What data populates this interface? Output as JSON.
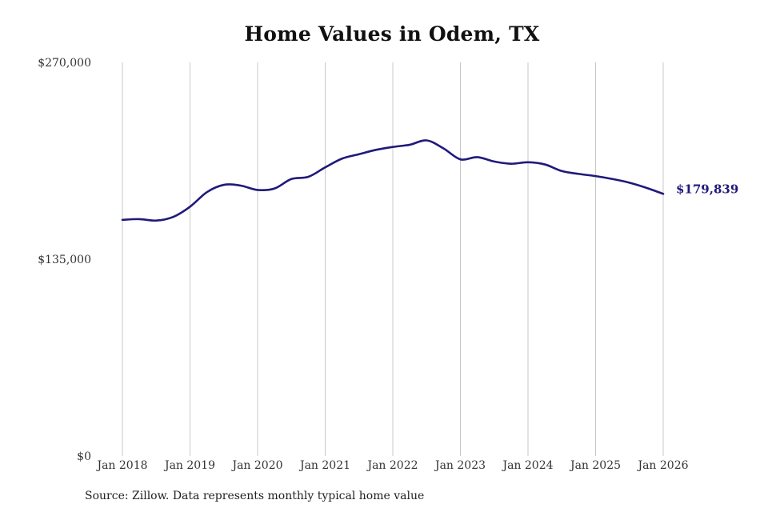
{
  "title": "Home Values in Odem, TX",
  "source_note": "Source: Zillow. Data represents monthly typical home value",
  "colors": {
    "line": "#1f1a7a",
    "grid": "#c8c8c8",
    "text": "#333333",
    "end_label": "#1f1a7a"
  },
  "chart_data": {
    "type": "line",
    "title": "Home Values in Odem, TX",
    "xlabel": "",
    "ylabel": "",
    "ylim": [
      0,
      270000
    ],
    "yticks": [
      0,
      135000,
      270000
    ],
    "ytick_labels": [
      "$0",
      "$135,000",
      "$270,000"
    ],
    "x_range": [
      "2018-01",
      "2026-01"
    ],
    "xticks": [
      "2018-01",
      "2019-01",
      "2020-01",
      "2021-01",
      "2022-01",
      "2023-01",
      "2024-01",
      "2025-01",
      "2026-01"
    ],
    "xtick_labels": [
      "Jan 2018",
      "Jan 2019",
      "Jan 2020",
      "Jan 2021",
      "Jan 2022",
      "Jan 2023",
      "Jan 2024",
      "Jan 2025",
      "Jan 2026"
    ],
    "grid": "vertical",
    "end_label": "$179,839",
    "series": [
      {
        "x": [
          "2018-01",
          "2018-04",
          "2018-07",
          "2018-10",
          "2019-01",
          "2019-04",
          "2019-07",
          "2019-10",
          "2020-01",
          "2020-04",
          "2020-07",
          "2020-10",
          "2021-01",
          "2021-04",
          "2021-07",
          "2021-10",
          "2022-01",
          "2022-04",
          "2022-07",
          "2022-10",
          "2023-01",
          "2023-04",
          "2023-07",
          "2023-10",
          "2024-01",
          "2024-04",
          "2024-07",
          "2024-10",
          "2025-01",
          "2025-04",
          "2025-07",
          "2025-10",
          "2026-01"
        ],
        "values": [
          162000,
          162500,
          161500,
          164000,
          171000,
          181000,
          186000,
          185500,
          182500,
          183500,
          190000,
          191500,
          198000,
          204000,
          207000,
          210000,
          212000,
          213500,
          216500,
          211000,
          203500,
          205000,
          202000,
          200500,
          201500,
          200000,
          195500,
          193500,
          192000,
          190000,
          187500,
          184000,
          179839
        ]
      }
    ]
  }
}
